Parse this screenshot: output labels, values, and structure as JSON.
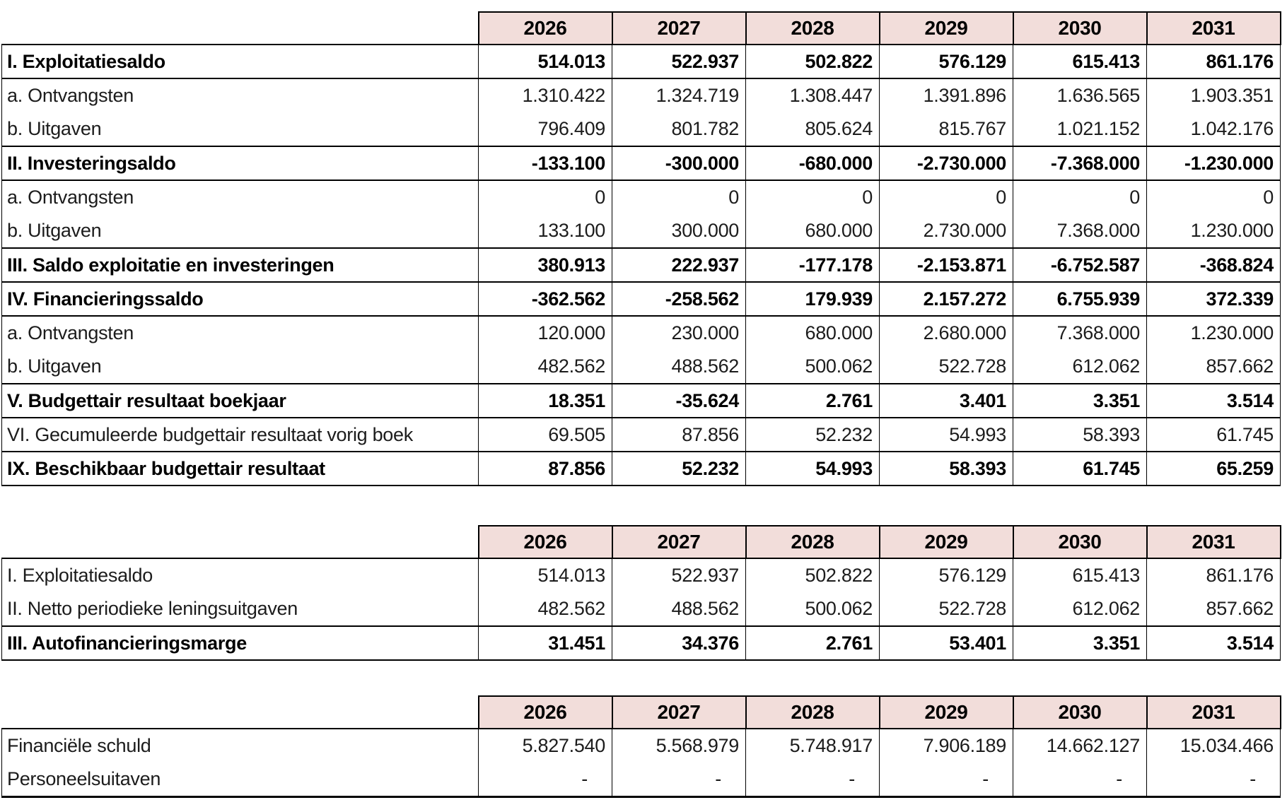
{
  "meta": {
    "language": "nl",
    "header_bg_color": "#F2DDDA",
    "border_color": "#000000",
    "text_color": "#000000"
  },
  "years": [
    "2026",
    "2027",
    "2028",
    "2029",
    "2030",
    "2031"
  ],
  "tables": {
    "budget": {
      "rows": [
        {
          "label": "I. Exploitatiesaldo",
          "bold": true,
          "values": [
            "514.013",
            "522.937",
            "502.822",
            "576.129",
            "615.413",
            "861.176"
          ]
        },
        {
          "label": "a. Ontvangsten",
          "bold": false,
          "values": [
            "1.310.422",
            "1.324.719",
            "1.308.447",
            "1.391.896",
            "1.636.565",
            "1.903.351"
          ]
        },
        {
          "label": "b. Uitgaven",
          "bold": false,
          "values": [
            "796.409",
            "801.782",
            "805.624",
            "815.767",
            "1.021.152",
            "1.042.176"
          ]
        },
        {
          "label": "II. Investeringsaldo",
          "bold": true,
          "values": [
            "-133.100",
            "-300.000",
            "-680.000",
            "-2.730.000",
            "-7.368.000",
            "-1.230.000"
          ]
        },
        {
          "label": "a. Ontvangsten",
          "bold": false,
          "values": [
            "0",
            "0",
            "0",
            "0",
            "0",
            "0"
          ]
        },
        {
          "label": "b. Uitgaven",
          "bold": false,
          "values": [
            "133.100",
            "300.000",
            "680.000",
            "2.730.000",
            "7.368.000",
            "1.230.000"
          ]
        },
        {
          "label": "III. Saldo exploitatie en investeringen",
          "bold": true,
          "values": [
            "380.913",
            "222.937",
            "-177.178",
            "-2.153.871",
            "-6.752.587",
            "-368.824"
          ]
        },
        {
          "label": "IV. Financieringssaldo",
          "bold": true,
          "values": [
            "-362.562",
            "-258.562",
            "179.939",
            "2.157.272",
            "6.755.939",
            "372.339"
          ]
        },
        {
          "label": "a. Ontvangsten",
          "bold": false,
          "values": [
            "120.000",
            "230.000",
            "680.000",
            "2.680.000",
            "7.368.000",
            "1.230.000"
          ]
        },
        {
          "label": "b. Uitgaven",
          "bold": false,
          "values": [
            "482.562",
            "488.562",
            "500.062",
            "522.728",
            "612.062",
            "857.662"
          ]
        },
        {
          "label": "V. Budgettair resultaat boekjaar",
          "bold": true,
          "values": [
            "18.351",
            "-35.624",
            "2.761",
            "3.401",
            "3.351",
            "3.514"
          ]
        },
        {
          "label": "VI. Gecumuleerde budgettair resultaat vorig boek",
          "bold": false,
          "values": [
            "69.505",
            "87.856",
            "52.232",
            "54.993",
            "58.393",
            "61.745"
          ]
        },
        {
          "label": "IX. Beschikbaar budgettair resultaat",
          "bold": true,
          "values": [
            "87.856",
            "52.232",
            "54.993",
            "58.393",
            "61.745",
            "65.259"
          ]
        }
      ]
    },
    "autofinanciering": {
      "rows": [
        {
          "label": "I. Exploitatiesaldo",
          "bold": false,
          "values": [
            "514.013",
            "522.937",
            "502.822",
            "576.129",
            "615.413",
            "861.176"
          ]
        },
        {
          "label": "II. Netto periodieke leningsuitgaven",
          "bold": false,
          "values": [
            "482.562",
            "488.562",
            "500.062",
            "522.728",
            "612.062",
            "857.662"
          ]
        },
        {
          "label": "III. Autofinancieringsmarge",
          "bold": true,
          "values": [
            "31.451",
            "34.376",
            "2.761",
            "53.401",
            "3.351",
            "3.514"
          ]
        }
      ]
    },
    "schuld": {
      "rows": [
        {
          "label": "Financiële schuld",
          "bold": false,
          "values": [
            "5.827.540",
            "5.568.979",
            "5.748.917",
            "7.906.189",
            "14.662.127",
            "15.034.466"
          ]
        },
        {
          "label": "Personeelsuitaven",
          "bold": false,
          "values": [
            "-",
            "-",
            "-",
            "-",
            "-",
            "-"
          ]
        }
      ]
    }
  }
}
